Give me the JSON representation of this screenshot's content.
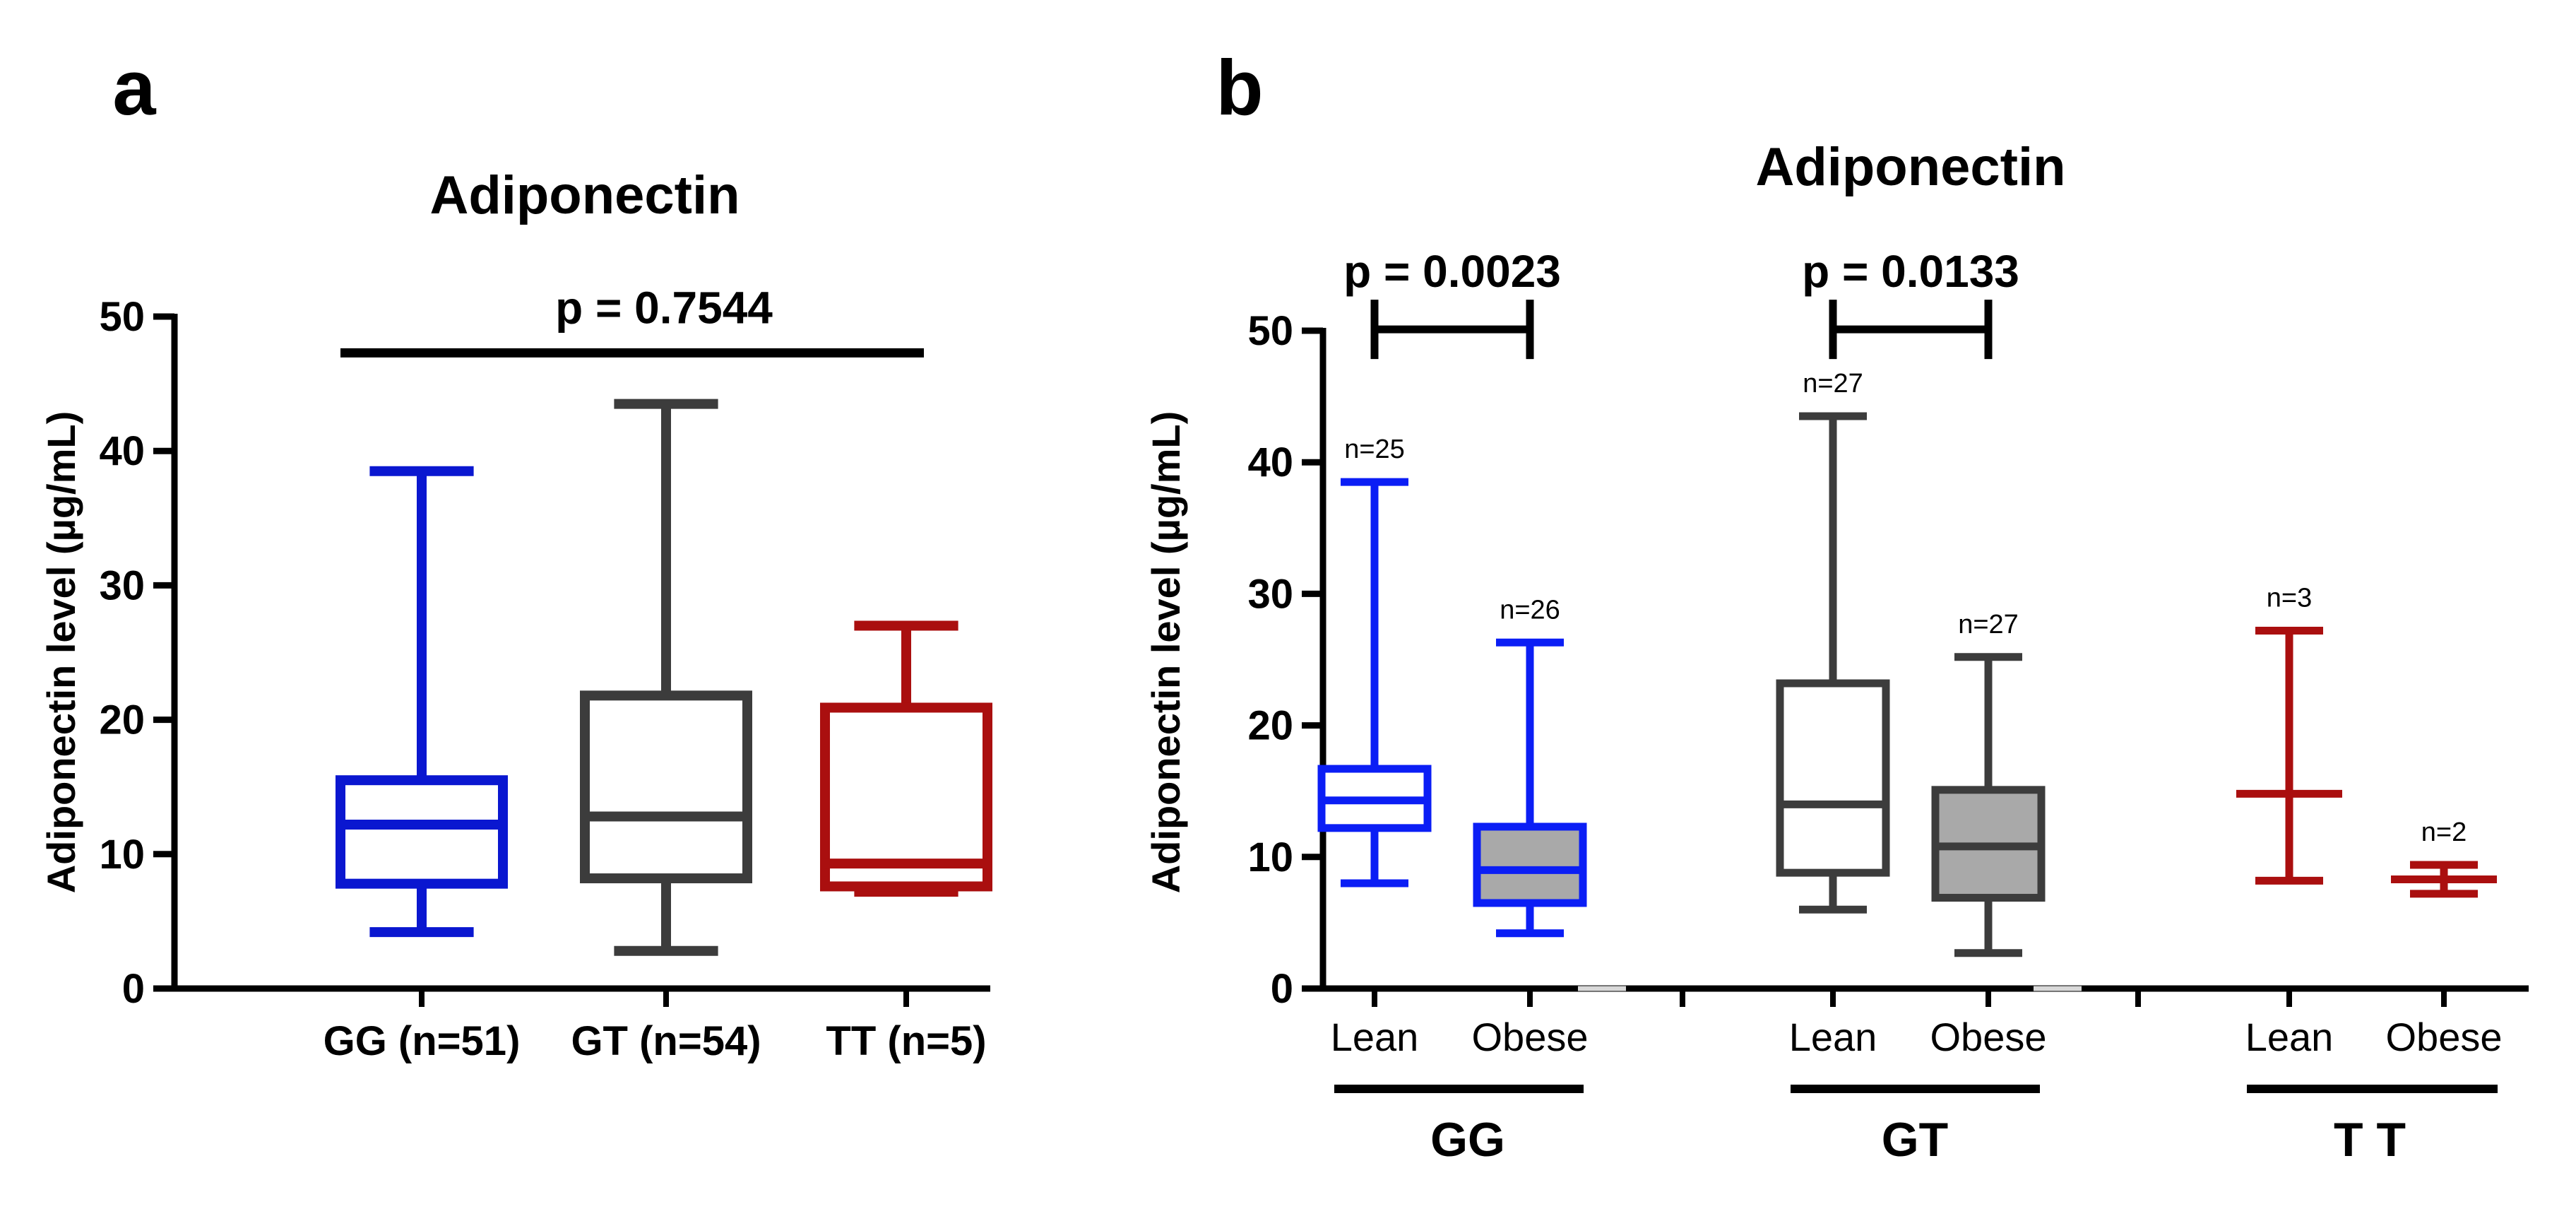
{
  "chart_data": [
    {
      "panel": "a",
      "type": "boxplot",
      "title": "Adiponectin",
      "ylabel": "Adiponectin level (µg/mL)",
      "ylim": [
        0,
        50
      ],
      "yticks": [
        0,
        10,
        20,
        30,
        40,
        50
      ],
      "categories": [
        "GG (n=51)",
        "GT (n=54)",
        "TT (n=5)"
      ],
      "boxes": [
        {
          "label": "GG (n=51)",
          "min": 4.2,
          "q1": 7.8,
          "median": 12.2,
          "q3": 15.5,
          "max": 38.5,
          "color": "#0a17d0",
          "fill": "#ffffff"
        },
        {
          "label": "GT (n=54)",
          "min": 2.8,
          "q1": 8.2,
          "median": 12.8,
          "q3": 21.8,
          "max": 43.5,
          "color": "#3c3c3c",
          "fill": "#ffffff"
        },
        {
          "label": "TT (n=5)",
          "min": 7.2,
          "q1": 7.6,
          "median": 9.3,
          "q3": 20.9,
          "max": 27.0,
          "color": "#aa0f0f",
          "fill": "#ffffff"
        }
      ],
      "annotations": [
        {
          "text": "p = 0.7544",
          "from": 0,
          "to": 2,
          "y": 47.3
        }
      ]
    },
    {
      "panel": "b",
      "type": "boxplot",
      "title": "Adiponectin",
      "ylabel": "Adiponectin level (µg/mL)",
      "ylim": [
        0,
        50
      ],
      "yticks": [
        0,
        10,
        20,
        30,
        40,
        50
      ],
      "groups": [
        "GG",
        "GT",
        "T T"
      ],
      "subcategories": [
        "Lean",
        "Obese",
        "Lean",
        "Obese",
        "Lean",
        "Obese"
      ],
      "boxes": [
        {
          "group": "GG",
          "label": "Lean",
          "n": "n=25",
          "min": 8.0,
          "q1": 12.2,
          "median": 14.3,
          "q3": 16.7,
          "max": 38.5,
          "color": "#0b1ef5",
          "fill": "#ffffff"
        },
        {
          "group": "GG",
          "label": "Obese",
          "n": "n=26",
          "min": 4.2,
          "q1": 6.5,
          "median": 9.0,
          "q3": 12.3,
          "max": 26.3,
          "color": "#0b1ef5",
          "fill": "#a9a9a9"
        },
        {
          "group": "GT",
          "label": "Lean",
          "n": "n=27",
          "min": 6.0,
          "q1": 8.8,
          "median": 14.0,
          "q3": 23.2,
          "max": 43.5,
          "color": "#3c3c3c",
          "fill": "#ffffff"
        },
        {
          "group": "GT",
          "label": "Obese",
          "n": "n=27",
          "min": 2.7,
          "q1": 6.9,
          "median": 10.8,
          "q3": 15.1,
          "max": 25.2,
          "color": "#3c3c3c",
          "fill": "#a9a9a9"
        },
        {
          "group": "T T",
          "label": "Lean",
          "n": "n=3",
          "min": 8.2,
          "q1": 14.8,
          "median": 14.8,
          "q3": 14.8,
          "max": 27.2,
          "color": "#aa0f0f",
          "fill": "#ffffff"
        },
        {
          "group": "T T",
          "label": "Obese",
          "n": "n=2",
          "min": 7.2,
          "q1": 8.3,
          "median": 8.3,
          "q3": 8.3,
          "max": 9.4,
          "color": "#aa0f0f",
          "fill": "#ffffff"
        }
      ],
      "annotations": [
        {
          "text": "p = 0.0023",
          "from": 0,
          "to": 1,
          "y": 50.1
        },
        {
          "text": "p = 0.0133",
          "from": 2,
          "to": 3,
          "y": 50.1
        }
      ]
    }
  ]
}
